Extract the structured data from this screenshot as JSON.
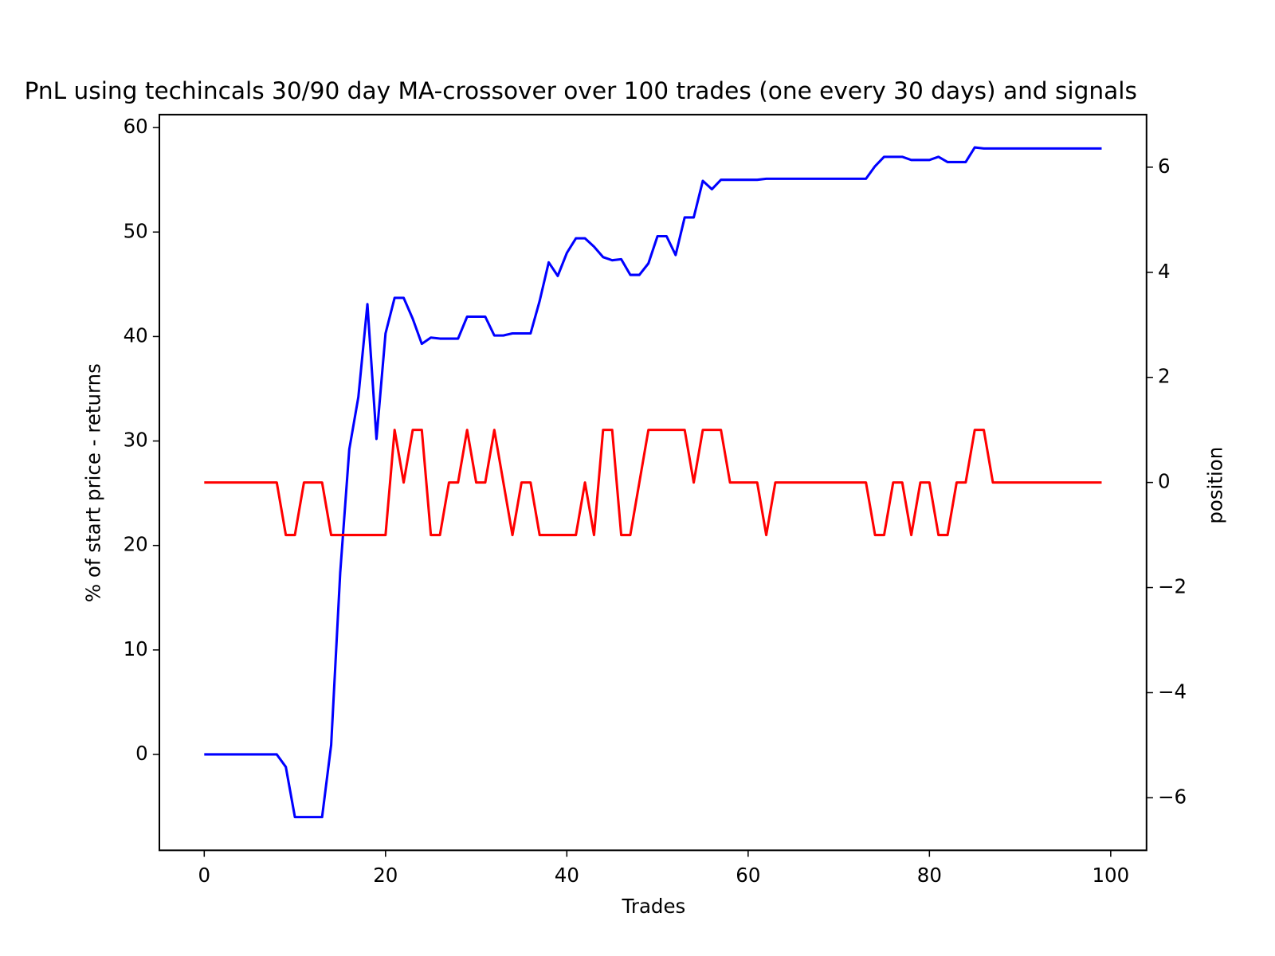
{
  "chart_data": {
    "type": "line",
    "title": "PnL using techincals 30/90 day MA-crossover over 100 trades (one every 30 days) and signals",
    "xlabel": "Trades",
    "ylabel": "% of start price - returns",
    "y2label": "position",
    "ylabel_color": "#0000ff",
    "y2label_color": "#ff0000",
    "x": [
      0,
      1,
      2,
      3,
      4,
      5,
      6,
      7,
      8,
      9,
      10,
      11,
      12,
      13,
      14,
      15,
      16,
      17,
      18,
      19,
      20,
      21,
      22,
      23,
      24,
      25,
      26,
      27,
      28,
      29,
      30,
      31,
      32,
      33,
      34,
      35,
      36,
      37,
      38,
      39,
      40,
      41,
      42,
      43,
      44,
      45,
      46,
      47,
      48,
      49,
      50,
      51,
      52,
      53,
      54,
      55,
      56,
      57,
      58,
      59,
      60,
      61,
      62,
      63,
      64,
      65,
      66,
      67,
      68,
      69,
      70,
      71,
      72,
      73,
      74,
      75,
      76,
      77,
      78,
      79,
      80,
      81,
      82,
      83,
      84,
      85,
      86,
      87,
      88,
      89,
      90,
      91,
      92,
      93,
      94,
      95,
      96,
      97,
      98,
      99
    ],
    "series": [
      {
        "color": "#0000ff",
        "values": [
          0,
          0,
          0,
          0,
          0,
          0,
          0,
          0,
          0,
          -1.2,
          -6,
          -6,
          -6,
          -6,
          0.9,
          17.4,
          29.2,
          34.2,
          43.1,
          30.2,
          40.3,
          43.7,
          43.7,
          41.7,
          39.3,
          39.9,
          39.8,
          39.8,
          39.8,
          41.9,
          41.9,
          41.9,
          40.1,
          40.1,
          40.3,
          40.3,
          40.3,
          43.4,
          47.1,
          45.8,
          48,
          49.4,
          49.4,
          48.6,
          47.6,
          47.3,
          47.4,
          45.9,
          45.9,
          47,
          49.6,
          49.6,
          47.8,
          51.4,
          51.4,
          54.9,
          54.1,
          55,
          55,
          55,
          55,
          55,
          55.1,
          55.1,
          55.1,
          55.1,
          55.1,
          55.1,
          55.1,
          55.1,
          55.1,
          55.1,
          55.1,
          55.1,
          56.3,
          57.2,
          57.2,
          57.2,
          56.9,
          56.9,
          56.9,
          57.2,
          56.7,
          56.7,
          56.7,
          58.1,
          58,
          58,
          58,
          58,
          58,
          58,
          58,
          58,
          58,
          58,
          58,
          58,
          58,
          58
        ]
      },
      {
        "color": "#ff0000",
        "axis": "y2",
        "values": [
          0,
          0,
          0,
          0,
          0,
          0,
          0,
          0,
          0,
          -1,
          -1,
          0,
          0,
          0,
          -1,
          -1,
          -1,
          -1,
          -1,
          -1,
          -1,
          1,
          0,
          1,
          1,
          -1,
          -1,
          0,
          0,
          1,
          0,
          0,
          1,
          0,
          -1,
          0,
          0,
          -1,
          -1,
          -1,
          -1,
          -1,
          0,
          -1,
          1,
          1,
          -1,
          -1,
          0,
          1,
          1,
          1,
          1,
          1,
          0,
          1,
          1,
          1,
          0,
          0,
          0,
          0,
          -1,
          0,
          0,
          0,
          0,
          0,
          0,
          0,
          0,
          0,
          0,
          0,
          -1,
          -1,
          0,
          0,
          -1,
          0,
          0,
          -1,
          -1,
          0,
          0,
          1,
          1,
          0,
          0,
          0,
          0,
          0,
          0,
          0,
          0,
          0,
          0,
          0,
          0,
          0
        ]
      }
    ],
    "xlim": [
      -4.95,
      103.95
    ],
    "xticks": [
      0,
      20,
      40,
      60,
      80,
      100
    ],
    "ylim": [
      -9.18,
      61.24
    ],
    "yticks": [
      0,
      10,
      20,
      30,
      40,
      50,
      60
    ],
    "y2lim": [
      -7,
      7
    ],
    "y2ticks": [
      {
        "value": -6,
        "label": "−6"
      },
      {
        "value": -4,
        "label": "−4"
      },
      {
        "value": -2,
        "label": "−2"
      },
      0,
      2,
      4,
      6
    ],
    "grid": false
  }
}
